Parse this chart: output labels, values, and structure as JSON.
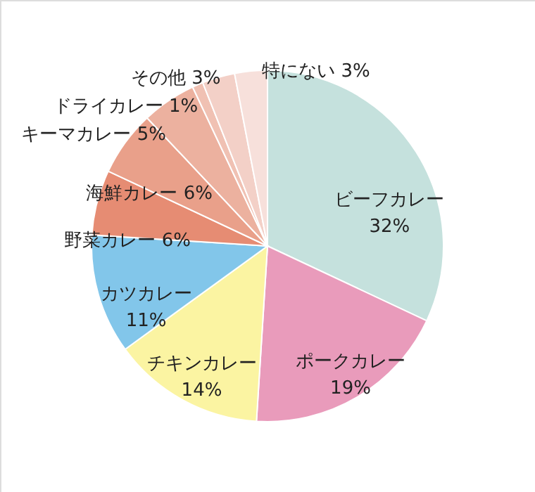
{
  "chart_data": {
    "type": "pie",
    "categories": [
      "ビーフカレー",
      "ポークカレー",
      "チキンカレー",
      "カツカレー",
      "野菜カレー",
      "海鮮カレー",
      "キーマカレー",
      "ドライカレー",
      "その他",
      "特にない"
    ],
    "values": [
      32,
      19,
      14,
      11,
      6,
      6,
      5,
      1,
      3,
      3
    ],
    "value_labels": [
      "32%",
      "19%",
      "14%",
      "11%",
      "6%",
      "6%",
      "5%",
      "1%",
      "3%",
      "3%"
    ],
    "colors": [
      "#c5e1dd",
      "#e99bbb",
      "#fbf4a2",
      "#82c6ea",
      "#e68c73",
      "#e9a08a",
      "#ecb19f",
      "#f0c1b3",
      "#f3d0c7",
      "#f7e0db"
    ],
    "legend": false
  }
}
